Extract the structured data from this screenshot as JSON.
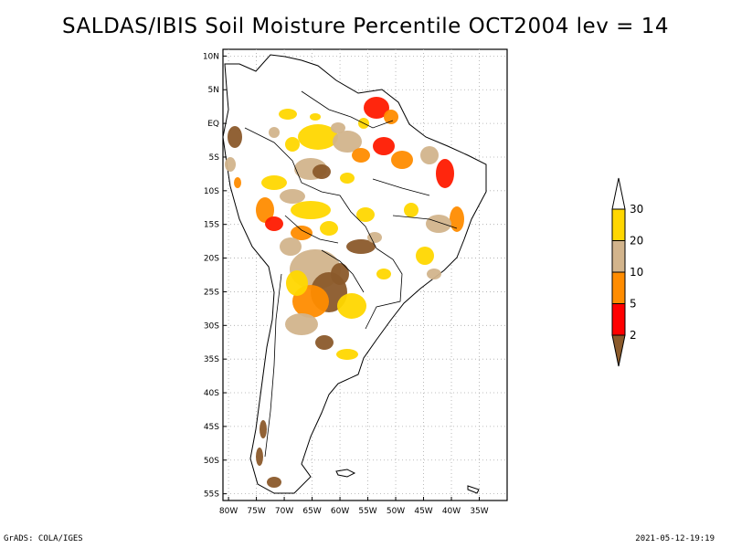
{
  "title": "SALDAS/IBIS Soil Moisture Percentile OCT2004 lev = 14",
  "footer": {
    "left": "GrADS: COLA/IGES",
    "right": "2021-05-12-19:19"
  },
  "axes": {
    "lon_labels": [
      "80W",
      "75W",
      "70W",
      "65W",
      "60W",
      "55W",
      "50W",
      "45W",
      "40W",
      "35W"
    ],
    "lon_values": [
      -80,
      -75,
      -70,
      -65,
      -60,
      -55,
      -50,
      -45,
      -40,
      -35
    ],
    "lat_labels": [
      "10N",
      "5N",
      "EQ",
      "5S",
      "10S",
      "15S",
      "20S",
      "25S",
      "30S",
      "35S",
      "40S",
      "45S",
      "50S",
      "55S"
    ],
    "lat_values": [
      10,
      5,
      0,
      -5,
      -10,
      -15,
      -20,
      -25,
      -30,
      -35,
      -40,
      -45,
      -50,
      -55
    ],
    "lon_range": [
      -81,
      -30
    ],
    "lat_range": [
      -56,
      11
    ],
    "grid": true
  },
  "colorbar": {
    "ticks": [
      "2",
      "5",
      "10",
      "20",
      "30"
    ],
    "colors": [
      "#8b5a2b",
      "#ff0000",
      "#ff8c00",
      "#d2b48c",
      "#ffd700"
    ],
    "top_arrow_color": "#ffffff"
  },
  "map": {
    "land_color": "#ffffff",
    "coast_color": "#000000",
    "palette": {
      "lt2": "#8b5a2b",
      "2to5": "#ff1a00",
      "5to10": "#ff8c00",
      "10to20": "#d2b48c",
      "20to30": "#ffd700"
    }
  }
}
